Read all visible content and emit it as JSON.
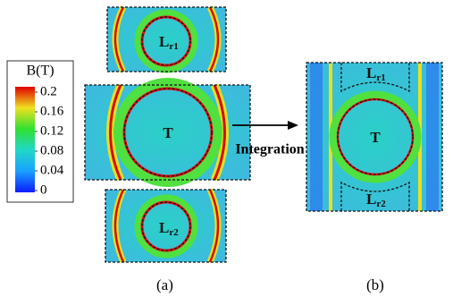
{
  "colorbar": {
    "title": "B(T)",
    "ticks": [
      0.2,
      0.16,
      0.12,
      0.08,
      0.04,
      0
    ]
  },
  "panel_a": {
    "regions": [
      {
        "main": "L",
        "sub": "r1"
      },
      {
        "main": "T"
      },
      {
        "main": "L",
        "sub": "r2"
      }
    ],
    "caption": "(a)"
  },
  "arrow_label": "Integration",
  "panel_b": {
    "regions": [
      {
        "main": "L",
        "sub": "r1"
      },
      {
        "main": "T"
      },
      {
        "main": "L",
        "sub": "r2"
      }
    ],
    "caption": "(b)"
  }
}
